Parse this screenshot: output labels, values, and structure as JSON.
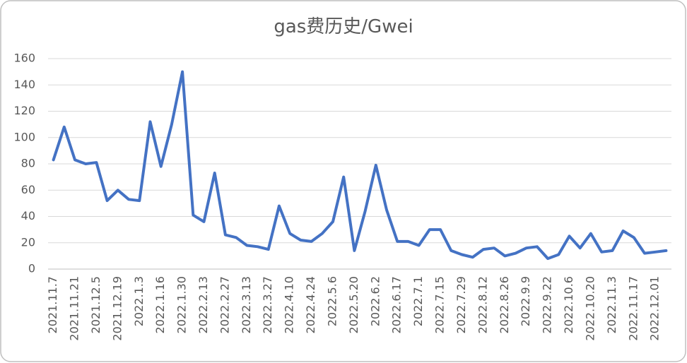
{
  "chart_data": {
    "type": "line",
    "title": "gas费历史/Gwei",
    "categories": [
      "2021.11.7",
      null,
      "2021.11.21",
      null,
      "2021.12.5",
      null,
      "2021.12.19",
      null,
      "2022.1.3",
      null,
      "2022.1.16",
      null,
      "2022.1.30",
      null,
      "2022.2.13",
      null,
      "2022.2.27",
      null,
      "2022.3.13",
      null,
      "2022.3.27",
      null,
      "2022.4.10",
      null,
      "2022.4.24",
      null,
      "2022.5.6",
      null,
      "2022.5.20",
      null,
      "2022.6.2",
      null,
      "2022.6.17",
      null,
      "2022.7.1",
      null,
      "2022.7.15",
      null,
      "2022.7.29",
      null,
      "2022.8.12",
      null,
      "2022.8.26",
      null,
      "2022.9.9",
      null,
      "2022.9.22",
      null,
      "2022.10.6",
      null,
      "2022.10.20",
      null,
      "2022.11.3",
      null,
      "2022.11.17",
      null,
      "2022.12.01",
      null
    ],
    "values": [
      83,
      108,
      83,
      80,
      81,
      52,
      60,
      53,
      52,
      112,
      78,
      110,
      150,
      41,
      36,
      73,
      26,
      24,
      18,
      17,
      15,
      48,
      27,
      22,
      21,
      27,
      36,
      70,
      14,
      44,
      79,
      45,
      21,
      21,
      18,
      30,
      30,
      14,
      11,
      9,
      15,
      16,
      10,
      12,
      16,
      17,
      8,
      11,
      25,
      16,
      27,
      13,
      14,
      29,
      24,
      12,
      13,
      14
    ],
    "color": "#4472c4",
    "ylim": [
      0,
      160
    ],
    "yticks": [
      0,
      20,
      40,
      60,
      80,
      100,
      120,
      140,
      160
    ],
    "grid": true
  }
}
